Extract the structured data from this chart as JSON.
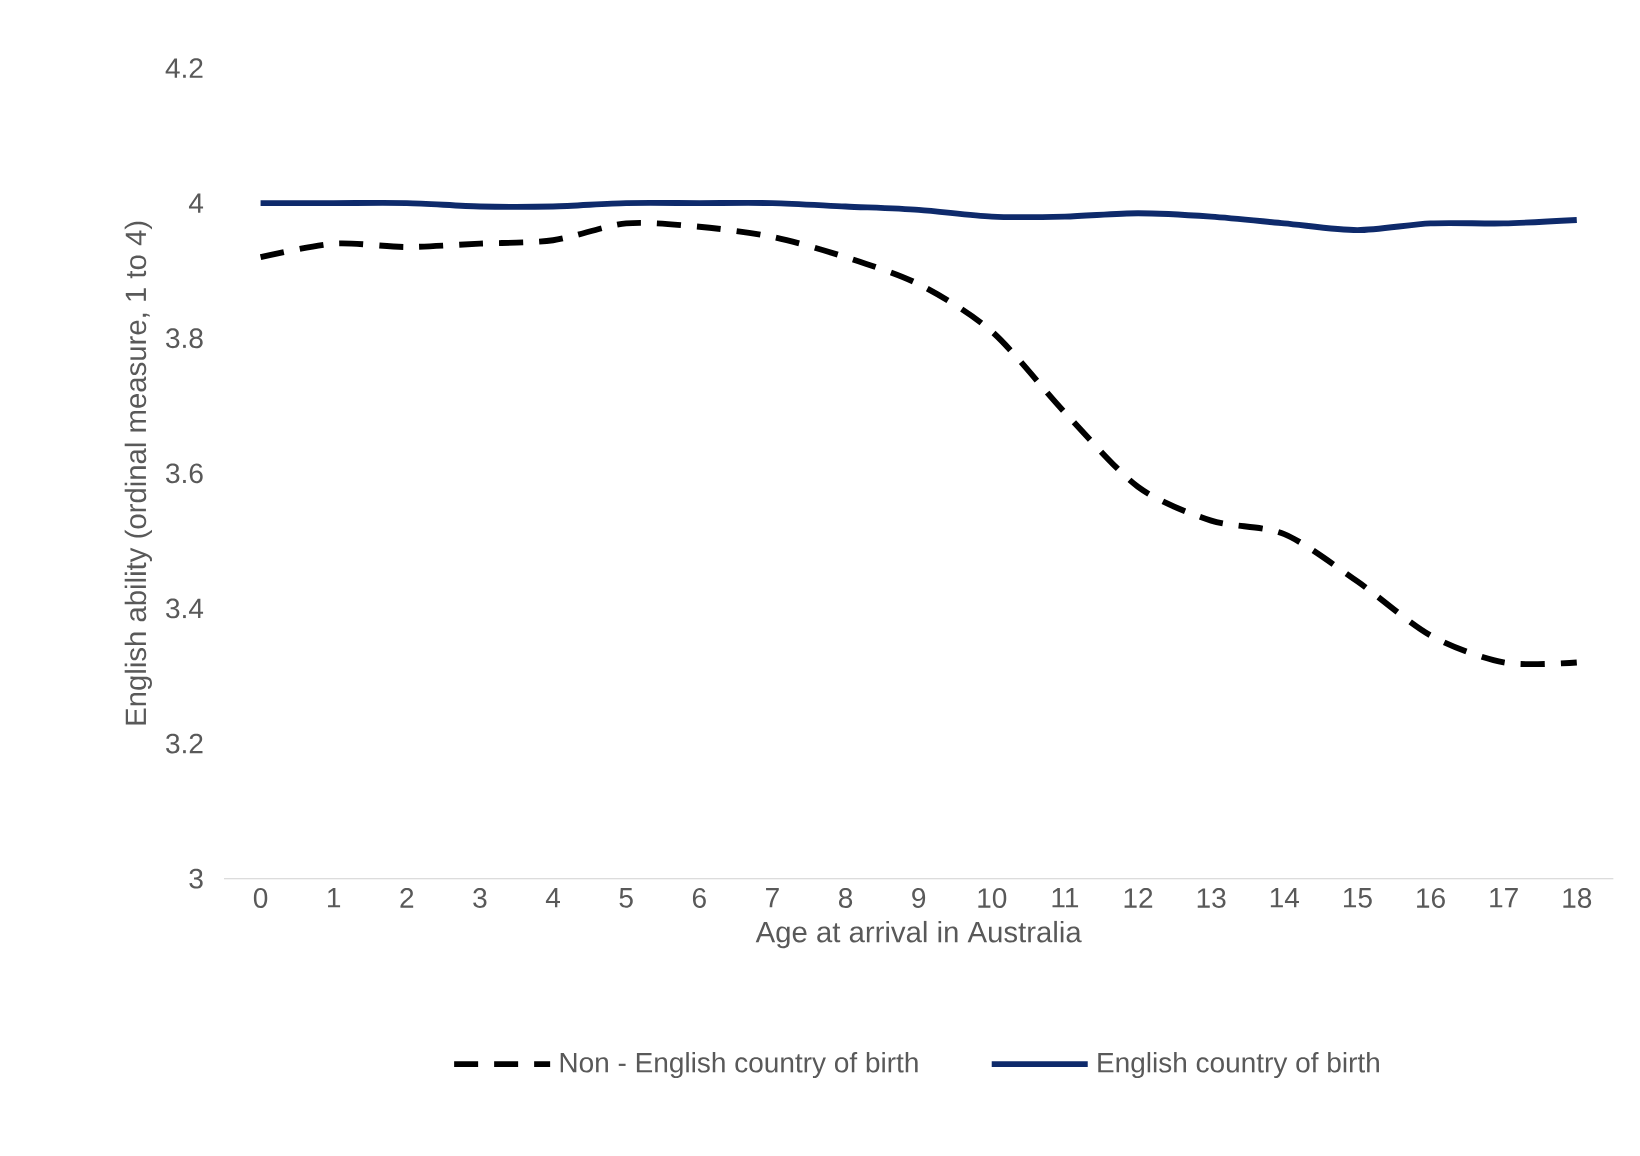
{
  "chart_data": {
    "type": "line",
    "xlabel": "Age at arrival in Australia",
    "ylabel": "English ability (ordinal measure, 1 to 4)",
    "categories": [
      "0",
      "1",
      "2",
      "3",
      "4",
      "5",
      "6",
      "7",
      "8",
      "9",
      "10",
      "11",
      "12",
      "13",
      "14",
      "15",
      "16",
      "17",
      "18"
    ],
    "series": [
      {
        "name": "Non - English country of birth",
        "color": "#000000",
        "line_style": "dashed",
        "values": [
          3.92,
          3.94,
          3.935,
          3.94,
          3.945,
          3.97,
          3.965,
          3.95,
          3.92,
          3.88,
          3.81,
          3.69,
          3.58,
          3.53,
          3.51,
          3.44,
          3.36,
          3.32,
          3.32
        ]
      },
      {
        "name": "English country of birth",
        "color": "#0e2a6b",
        "line_style": "solid",
        "values": [
          4.0,
          4.0,
          4.0,
          3.995,
          3.995,
          4.0,
          4.0,
          4.0,
          3.995,
          3.99,
          3.98,
          3.98,
          3.985,
          3.98,
          3.97,
          3.96,
          3.97,
          3.97,
          3.975
        ]
      }
    ],
    "ylim": [
      3,
      4.2
    ],
    "yticks": [
      3,
      3.2,
      3.4,
      3.6,
      3.8,
      4,
      4.2
    ],
    "grid": false,
    "legend": "bottom",
    "marker": "none"
  }
}
